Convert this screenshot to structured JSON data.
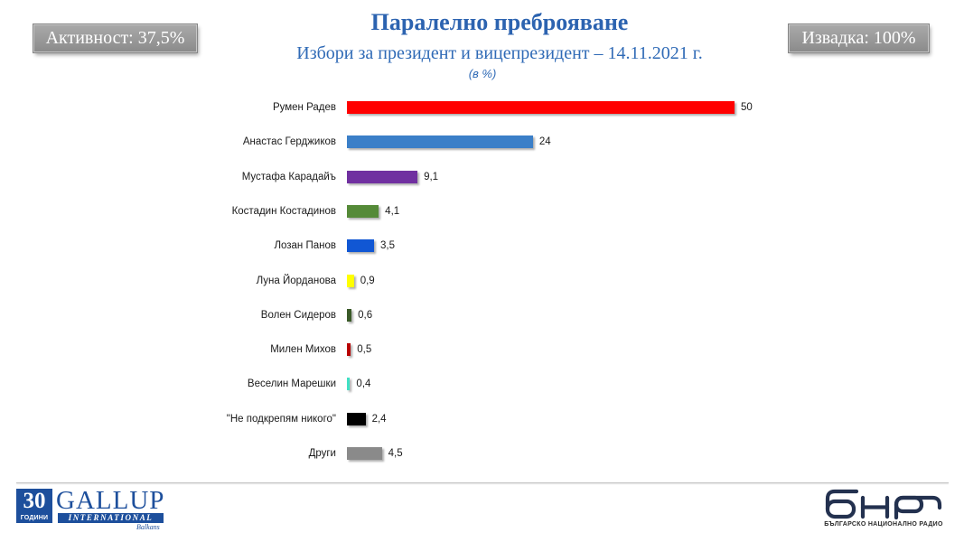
{
  "header": {
    "turnout_badge": "Активност: 37,5%",
    "sample_badge": "Извадка: 100%"
  },
  "chart_data": {
    "type": "bar",
    "orientation": "horizontal",
    "title": "Паралелно преброяване",
    "subtitle": "Избори за президент и вицепрезидент – 14.11.2021 г.",
    "unit_note": "(в %)",
    "categories": [
      "Румен Радев",
      "Анастас Герджиков",
      "Мустафа Карадайъ",
      "Костадин Костадинов",
      "Лозан Панов",
      "Луна Йорданова",
      "Волен Сидеров",
      "Милен Михов",
      "Веселин Марешки",
      "\"Не подкрепям никого\"",
      "Други"
    ],
    "values": [
      50,
      24,
      9.1,
      4.1,
      3.5,
      0.9,
      0.6,
      0.5,
      0.4,
      2.4,
      4.5
    ],
    "value_labels": [
      "50",
      "24",
      "9,1",
      "4,1",
      "3,5",
      "0,9",
      "0,6",
      "0,5",
      "0,4",
      "2,4",
      "4,5"
    ],
    "colors": [
      "#ff0000",
      "#3b7fc8",
      "#7030a0",
      "#558a38",
      "#1157d4",
      "#ffff00",
      "#3a5a28",
      "#b80000",
      "#40e0c4",
      "#000000",
      "#8a8a8a"
    ],
    "value_axis_visible": false,
    "grid": false,
    "legend": "none"
  },
  "footer": {
    "gallup_logo": {
      "years": "30",
      "years_word": "ГОДИНИ",
      "name": "GALLUP",
      "subtitle": "INTERNATIONAL",
      "region": "Balkans",
      "color": "#1d4f9c"
    },
    "bnr_logo": {
      "mark": "бнр",
      "caption": "БЪЛГАРСКО НАЦИОНАЛНО РАДИО",
      "color": "#23314f"
    }
  }
}
